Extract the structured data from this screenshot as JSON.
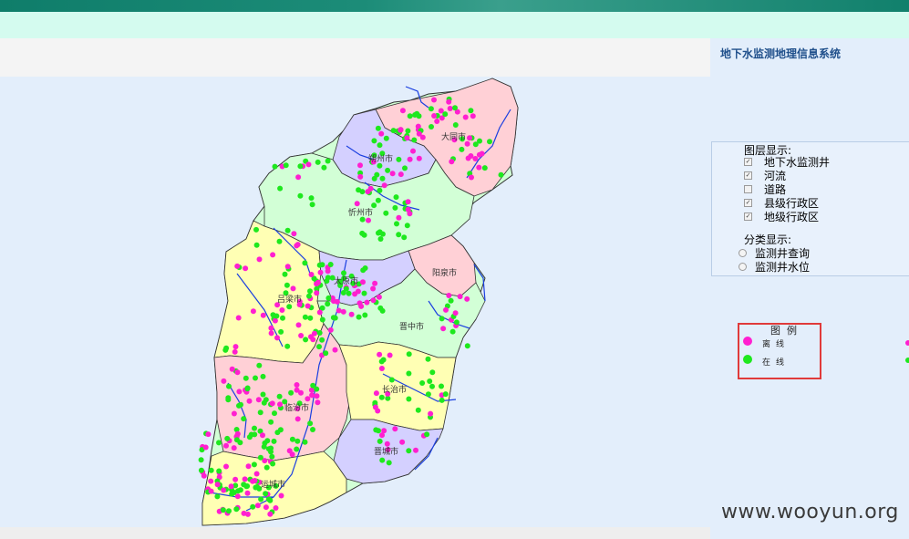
{
  "system_title": "地下水监测地理信息系统",
  "layers": {
    "title": "图层显示:",
    "items": [
      {
        "label": "地下水监测井",
        "checked": true
      },
      {
        "label": "河流",
        "checked": true
      },
      {
        "label": "道路",
        "checked": false
      },
      {
        "label": "县级行政区",
        "checked": true
      },
      {
        "label": "地级行政区",
        "checked": true
      }
    ]
  },
  "classification": {
    "title": "分类显示:",
    "options": [
      "监测井查询",
      "监测井水位"
    ]
  },
  "legend": {
    "title": "图例",
    "items": [
      {
        "label": "离线",
        "color": "#ff1fd0",
        "icon": "magenta-dot"
      },
      {
        "label": "在线",
        "color": "#1ee81e",
        "icon": "green-dot"
      }
    ]
  },
  "map": {
    "cities": [
      "大同市",
      "朔州市",
      "忻州市",
      "阳泉市",
      "太原市",
      "吕梁市",
      "晋中市",
      "长治市",
      "临汾市",
      "晋城市",
      "运城市"
    ],
    "region_colors": {
      "pink": "#ffd0d6",
      "lavender": "#d4d0ff",
      "mint": "#d2ffd6",
      "yellow": "#ffffb4"
    },
    "marker_colors": {
      "offline": "#ff1fd0",
      "online": "#1ee81e"
    },
    "river_color": "#1a3fe0"
  },
  "watermark": "www.wooyun.org"
}
